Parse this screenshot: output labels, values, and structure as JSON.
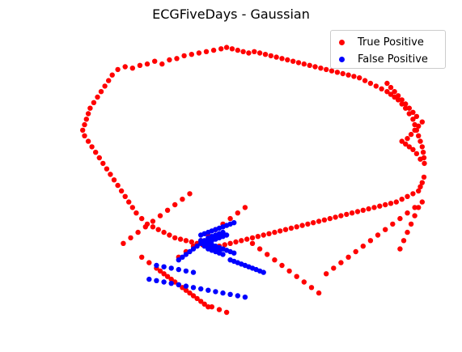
{
  "chart_data": {
    "type": "scatter",
    "title": "ECGFiveDays - Gaussian",
    "xlabel": "",
    "ylabel": "",
    "axes_visible": false,
    "grid": false,
    "legend_position": "top-right",
    "xlim": [
      0,
      1
    ],
    "ylim": [
      0,
      1
    ],
    "series": [
      {
        "name": "True Positive",
        "color": "#ff0000",
        "points": [
          [
            0.135,
            0.88
          ],
          [
            0.155,
            0.89
          ],
          [
            0.175,
            0.885
          ],
          [
            0.195,
            0.895
          ],
          [
            0.215,
            0.9
          ],
          [
            0.235,
            0.91
          ],
          [
            0.255,
            0.9
          ],
          [
            0.275,
            0.915
          ],
          [
            0.295,
            0.92
          ],
          [
            0.315,
            0.93
          ],
          [
            0.335,
            0.935
          ],
          [
            0.355,
            0.94
          ],
          [
            0.375,
            0.945
          ],
          [
            0.395,
            0.95
          ],
          [
            0.415,
            0.955
          ],
          [
            0.43,
            0.96
          ],
          [
            0.445,
            0.955
          ],
          [
            0.46,
            0.95
          ],
          [
            0.475,
            0.945
          ],
          [
            0.49,
            0.94
          ],
          [
            0.505,
            0.945
          ],
          [
            0.52,
            0.94
          ],
          [
            0.535,
            0.935
          ],
          [
            0.55,
            0.93
          ],
          [
            0.565,
            0.925
          ],
          [
            0.58,
            0.92
          ],
          [
            0.595,
            0.915
          ],
          [
            0.61,
            0.91
          ],
          [
            0.625,
            0.905
          ],
          [
            0.64,
            0.9
          ],
          [
            0.655,
            0.895
          ],
          [
            0.67,
            0.89
          ],
          [
            0.685,
            0.885
          ],
          [
            0.7,
            0.88
          ],
          [
            0.715,
            0.875
          ],
          [
            0.73,
            0.87
          ],
          [
            0.745,
            0.865
          ],
          [
            0.76,
            0.86
          ],
          [
            0.775,
            0.855
          ],
          [
            0.79,
            0.85
          ],
          [
            0.805,
            0.84
          ],
          [
            0.82,
            0.83
          ],
          [
            0.835,
            0.82
          ],
          [
            0.85,
            0.81
          ],
          [
            0.865,
            0.8
          ],
          [
            0.875,
            0.79
          ],
          [
            0.885,
            0.78
          ],
          [
            0.895,
            0.77
          ],
          [
            0.905,
            0.755
          ],
          [
            0.915,
            0.74
          ],
          [
            0.925,
            0.72
          ],
          [
            0.935,
            0.7
          ],
          [
            0.94,
            0.68
          ],
          [
            0.945,
            0.66
          ],
          [
            0.95,
            0.64
          ],
          [
            0.955,
            0.62
          ],
          [
            0.96,
            0.6
          ],
          [
            0.963,
            0.58
          ],
          [
            0.965,
            0.56
          ],
          [
            0.966,
            0.54
          ],
          [
            0.955,
            0.555
          ],
          [
            0.945,
            0.575
          ],
          [
            0.935,
            0.59
          ],
          [
            0.925,
            0.6
          ],
          [
            0.915,
            0.61
          ],
          [
            0.905,
            0.62
          ],
          [
            0.92,
            0.63
          ],
          [
            0.93,
            0.645
          ],
          [
            0.94,
            0.66
          ],
          [
            0.95,
            0.675
          ],
          [
            0.96,
            0.69
          ],
          [
            0.945,
            0.71
          ],
          [
            0.935,
            0.725
          ],
          [
            0.925,
            0.74
          ],
          [
            0.915,
            0.755
          ],
          [
            0.905,
            0.77
          ],
          [
            0.895,
            0.785
          ],
          [
            0.885,
            0.8
          ],
          [
            0.875,
            0.815
          ],
          [
            0.865,
            0.83
          ],
          [
            0.12,
            0.86
          ],
          [
            0.11,
            0.84
          ],
          [
            0.1,
            0.82
          ],
          [
            0.09,
            0.8
          ],
          [
            0.08,
            0.78
          ],
          [
            0.07,
            0.76
          ],
          [
            0.06,
            0.74
          ],
          [
            0.055,
            0.72
          ],
          [
            0.05,
            0.7
          ],
          [
            0.045,
            0.68
          ],
          [
            0.04,
            0.66
          ],
          [
            0.045,
            0.64
          ],
          [
            0.055,
            0.62
          ],
          [
            0.065,
            0.6
          ],
          [
            0.075,
            0.58
          ],
          [
            0.085,
            0.56
          ],
          [
            0.095,
            0.54
          ],
          [
            0.105,
            0.52
          ],
          [
            0.115,
            0.5
          ],
          [
            0.125,
            0.48
          ],
          [
            0.135,
            0.46
          ],
          [
            0.145,
            0.44
          ],
          [
            0.155,
            0.42
          ],
          [
            0.165,
            0.4
          ],
          [
            0.175,
            0.38
          ],
          [
            0.185,
            0.36
          ],
          [
            0.2,
            0.34
          ],
          [
            0.215,
            0.32
          ],
          [
            0.23,
            0.31
          ],
          [
            0.245,
            0.3
          ],
          [
            0.26,
            0.29
          ],
          [
            0.275,
            0.28
          ],
          [
            0.29,
            0.27
          ],
          [
            0.305,
            0.265
          ],
          [
            0.32,
            0.26
          ],
          [
            0.335,
            0.255
          ],
          [
            0.35,
            0.25
          ],
          [
            0.365,
            0.245
          ],
          [
            0.38,
            0.24
          ],
          [
            0.395,
            0.235
          ],
          [
            0.41,
            0.24
          ],
          [
            0.425,
            0.245
          ],
          [
            0.44,
            0.25
          ],
          [
            0.455,
            0.255
          ],
          [
            0.47,
            0.26
          ],
          [
            0.485,
            0.265
          ],
          [
            0.5,
            0.27
          ],
          [
            0.515,
            0.275
          ],
          [
            0.53,
            0.28
          ],
          [
            0.545,
            0.285
          ],
          [
            0.56,
            0.29
          ],
          [
            0.575,
            0.295
          ],
          [
            0.59,
            0.3
          ],
          [
            0.605,
            0.305
          ],
          [
            0.62,
            0.31
          ],
          [
            0.635,
            0.315
          ],
          [
            0.65,
            0.32
          ],
          [
            0.665,
            0.325
          ],
          [
            0.68,
            0.33
          ],
          [
            0.695,
            0.335
          ],
          [
            0.71,
            0.34
          ],
          [
            0.725,
            0.345
          ],
          [
            0.74,
            0.35
          ],
          [
            0.755,
            0.355
          ],
          [
            0.77,
            0.36
          ],
          [
            0.785,
            0.365
          ],
          [
            0.8,
            0.37
          ],
          [
            0.815,
            0.375
          ],
          [
            0.83,
            0.38
          ],
          [
            0.845,
            0.385
          ],
          [
            0.86,
            0.39
          ],
          [
            0.875,
            0.395
          ],
          [
            0.89,
            0.4
          ],
          [
            0.905,
            0.41
          ],
          [
            0.92,
            0.42
          ],
          [
            0.935,
            0.43
          ],
          [
            0.95,
            0.44
          ],
          [
            0.955,
            0.455
          ],
          [
            0.96,
            0.47
          ],
          [
            0.965,
            0.49
          ],
          [
            0.3,
            0.2
          ],
          [
            0.32,
            0.22
          ],
          [
            0.34,
            0.24
          ],
          [
            0.36,
            0.26
          ],
          [
            0.38,
            0.28
          ],
          [
            0.4,
            0.3
          ],
          [
            0.42,
            0.32
          ],
          [
            0.44,
            0.34
          ],
          [
            0.46,
            0.36
          ],
          [
            0.48,
            0.38
          ],
          [
            0.25,
            0.15
          ],
          [
            0.27,
            0.13
          ],
          [
            0.29,
            0.11
          ],
          [
            0.31,
            0.09
          ],
          [
            0.33,
            0.07
          ],
          [
            0.35,
            0.05
          ],
          [
            0.37,
            0.03
          ],
          [
            0.39,
            0.02
          ],
          [
            0.41,
            0.01
          ],
          [
            0.43,
            0.0
          ],
          [
            0.2,
            0.2
          ],
          [
            0.22,
            0.18
          ],
          [
            0.24,
            0.16
          ],
          [
            0.26,
            0.14
          ],
          [
            0.28,
            0.12
          ],
          [
            0.3,
            0.1
          ],
          [
            0.32,
            0.08
          ],
          [
            0.34,
            0.06
          ],
          [
            0.36,
            0.04
          ],
          [
            0.38,
            0.02
          ],
          [
            0.15,
            0.25
          ],
          [
            0.17,
            0.27
          ],
          [
            0.19,
            0.29
          ],
          [
            0.21,
            0.31
          ],
          [
            0.23,
            0.33
          ],
          [
            0.25,
            0.35
          ],
          [
            0.27,
            0.37
          ],
          [
            0.29,
            0.39
          ],
          [
            0.31,
            0.41
          ],
          [
            0.33,
            0.43
          ],
          [
            0.5,
            0.25
          ],
          [
            0.52,
            0.23
          ],
          [
            0.54,
            0.21
          ],
          [
            0.56,
            0.19
          ],
          [
            0.58,
            0.17
          ],
          [
            0.6,
            0.15
          ],
          [
            0.62,
            0.13
          ],
          [
            0.64,
            0.11
          ],
          [
            0.66,
            0.09
          ],
          [
            0.68,
            0.07
          ],
          [
            0.7,
            0.14
          ],
          [
            0.72,
            0.16
          ],
          [
            0.74,
            0.18
          ],
          [
            0.76,
            0.2
          ],
          [
            0.78,
            0.22
          ],
          [
            0.8,
            0.24
          ],
          [
            0.82,
            0.26
          ],
          [
            0.84,
            0.28
          ],
          [
            0.86,
            0.3
          ],
          [
            0.88,
            0.32
          ],
          [
            0.9,
            0.34
          ],
          [
            0.92,
            0.36
          ],
          [
            0.94,
            0.38
          ],
          [
            0.96,
            0.4
          ],
          [
            0.95,
            0.38
          ],
          [
            0.94,
            0.35
          ],
          [
            0.93,
            0.32
          ],
          [
            0.92,
            0.29
          ],
          [
            0.91,
            0.26
          ],
          [
            0.9,
            0.23
          ]
        ]
      },
      {
        "name": "False Positive",
        "color": "#0000ff",
        "points": [
          [
            0.36,
            0.28
          ],
          [
            0.37,
            0.285
          ],
          [
            0.38,
            0.29
          ],
          [
            0.39,
            0.295
          ],
          [
            0.4,
            0.3
          ],
          [
            0.41,
            0.305
          ],
          [
            0.42,
            0.31
          ],
          [
            0.43,
            0.315
          ],
          [
            0.44,
            0.32
          ],
          [
            0.45,
            0.325
          ],
          [
            0.36,
            0.26
          ],
          [
            0.37,
            0.255
          ],
          [
            0.38,
            0.25
          ],
          [
            0.39,
            0.245
          ],
          [
            0.4,
            0.24
          ],
          [
            0.41,
            0.235
          ],
          [
            0.42,
            0.23
          ],
          [
            0.43,
            0.225
          ],
          [
            0.44,
            0.22
          ],
          [
            0.45,
            0.215
          ],
          [
            0.38,
            0.27
          ],
          [
            0.39,
            0.275
          ],
          [
            0.4,
            0.28
          ],
          [
            0.41,
            0.285
          ],
          [
            0.42,
            0.29
          ],
          [
            0.39,
            0.26
          ],
          [
            0.4,
            0.265
          ],
          [
            0.41,
            0.27
          ],
          [
            0.42,
            0.275
          ],
          [
            0.43,
            0.28
          ],
          [
            0.38,
            0.23
          ],
          [
            0.39,
            0.225
          ],
          [
            0.4,
            0.22
          ],
          [
            0.41,
            0.215
          ],
          [
            0.42,
            0.21
          ],
          [
            0.37,
            0.24
          ],
          [
            0.38,
            0.235
          ],
          [
            0.39,
            0.23
          ],
          [
            0.4,
            0.225
          ],
          [
            0.41,
            0.22
          ],
          [
            0.44,
            0.19
          ],
          [
            0.45,
            0.185
          ],
          [
            0.46,
            0.18
          ],
          [
            0.47,
            0.175
          ],
          [
            0.48,
            0.17
          ],
          [
            0.49,
            0.165
          ],
          [
            0.5,
            0.16
          ],
          [
            0.51,
            0.155
          ],
          [
            0.52,
            0.15
          ],
          [
            0.53,
            0.145
          ],
          [
            0.24,
            0.17
          ],
          [
            0.26,
            0.165
          ],
          [
            0.28,
            0.16
          ],
          [
            0.3,
            0.155
          ],
          [
            0.32,
            0.15
          ],
          [
            0.34,
            0.145
          ],
          [
            0.22,
            0.12
          ],
          [
            0.24,
            0.115
          ],
          [
            0.26,
            0.11
          ],
          [
            0.28,
            0.105
          ],
          [
            0.3,
            0.1
          ],
          [
            0.32,
            0.095
          ],
          [
            0.34,
            0.09
          ],
          [
            0.36,
            0.085
          ],
          [
            0.38,
            0.08
          ],
          [
            0.4,
            0.075
          ],
          [
            0.42,
            0.07
          ],
          [
            0.44,
            0.065
          ],
          [
            0.46,
            0.06
          ],
          [
            0.48,
            0.055
          ],
          [
            0.3,
            0.19
          ],
          [
            0.31,
            0.2
          ],
          [
            0.32,
            0.21
          ],
          [
            0.33,
            0.22
          ],
          [
            0.34,
            0.23
          ],
          [
            0.35,
            0.24
          ],
          [
            0.36,
            0.25
          ],
          [
            0.37,
            0.26
          ],
          [
            0.38,
            0.265
          ],
          [
            0.39,
            0.27
          ]
        ]
      }
    ]
  }
}
